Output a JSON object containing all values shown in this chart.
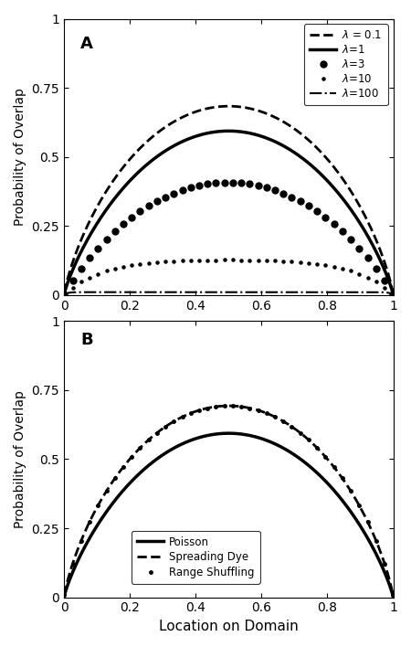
{
  "panel_A_label": "A",
  "panel_B_label": "B",
  "ylabel": "Probability of Overlap",
  "xlabel": "Location on Domain",
  "color": "#000000",
  "bg_color": "#ffffff",
  "xlim": [
    0,
    1
  ],
  "yticks": [
    0,
    0.25,
    0.5,
    0.75,
    1
  ],
  "xticks": [
    0,
    0.2,
    0.4,
    0.6,
    0.8,
    1
  ],
  "lambdas_A": [
    0.1,
    1,
    3,
    10,
    100
  ],
  "n_pts_line": 300,
  "n_pts_dots": 40
}
